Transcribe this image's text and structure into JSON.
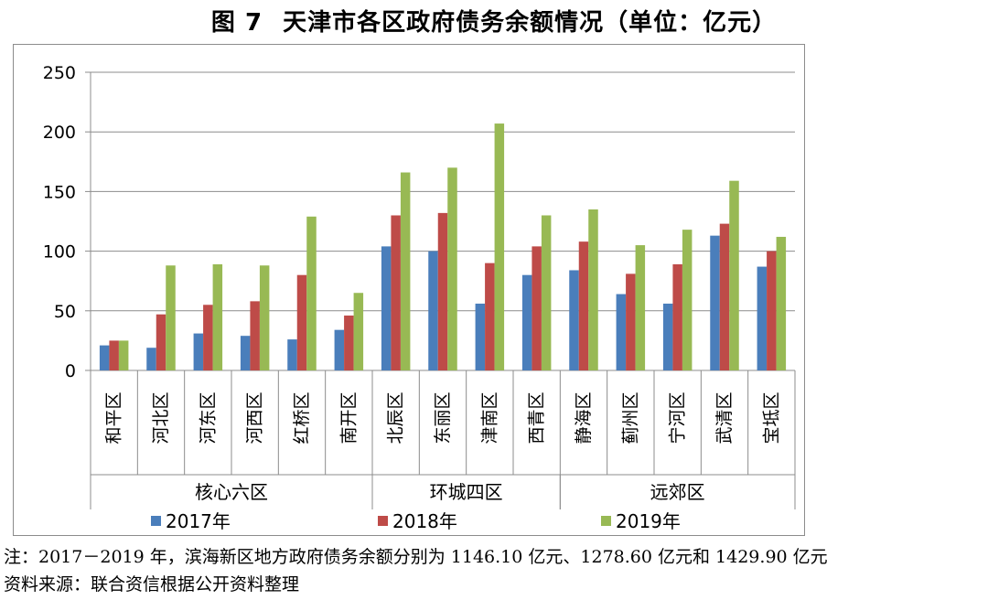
{
  "figure": {
    "number": "图 7",
    "title": "天津市各区政府债务余额情况（单位：亿元）"
  },
  "chart_data": {
    "type": "bar",
    "yticks": [
      "0",
      "50",
      "100",
      "150",
      "200",
      "250"
    ],
    "ylim": [
      0,
      250
    ],
    "grid": true,
    "legend_position": "bottom",
    "categories": [
      "和平区",
      "河北区",
      "河东区",
      "河西区",
      "红桥区",
      "南开区",
      "北辰区",
      "东丽区",
      "津南区",
      "西青区",
      "静海区",
      "蓟州区",
      "宁河区",
      "武清区",
      "宝坻区"
    ],
    "groups": [
      {
        "label": "核心六区",
        "start": 0,
        "end": 5
      },
      {
        "label": "环城四区",
        "start": 6,
        "end": 9
      },
      {
        "label": "远郊区",
        "start": 10,
        "end": 14
      }
    ],
    "series": [
      {
        "name": "2017年",
        "color": "#4a7ebb",
        "values": [
          21,
          19,
          31,
          29,
          26,
          34,
          104,
          100,
          56,
          80,
          84,
          64,
          56,
          113,
          87
        ]
      },
      {
        "name": "2018年",
        "color": "#be4b48",
        "values": [
          25,
          47,
          55,
          58,
          80,
          46,
          130,
          132,
          90,
          104,
          108,
          81,
          89,
          123,
          100
        ]
      },
      {
        "name": "2019年",
        "color": "#98b954",
        "values": [
          25,
          88,
          89,
          88,
          129,
          65,
          166,
          170,
          207,
          130,
          135,
          105,
          118,
          159,
          112
        ]
      }
    ]
  },
  "note": "注：2017－2019 年，滨海新区地方政府债务余额分别为 1146.10 亿元、1278.60 亿元和 1429.90 亿元",
  "source": "资料来源：联合资信根据公开资料整理"
}
